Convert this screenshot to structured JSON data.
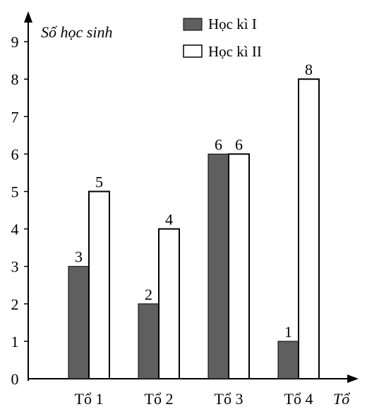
{
  "chart_data": {
    "type": "bar",
    "ylabel": "Số học sinh",
    "xlabel": "Tổ",
    "categories": [
      "Tổ 1",
      "Tổ 2",
      "Tổ 3",
      "Tổ 4"
    ],
    "series": [
      {
        "name": "Học kì I",
        "values": [
          3,
          2,
          6,
          1
        ],
        "color": "#5f5f5f"
      },
      {
        "name": "Học kì II",
        "values": [
          5,
          4,
          6,
          8
        ],
        "color": "#ffffff"
      }
    ],
    "yticks": [
      0,
      1,
      2,
      3,
      4,
      5,
      6,
      7,
      8,
      9
    ],
    "ylim": [
      0,
      9
    ],
    "grid": false,
    "legend_position": "top-center",
    "data_labels": true
  }
}
